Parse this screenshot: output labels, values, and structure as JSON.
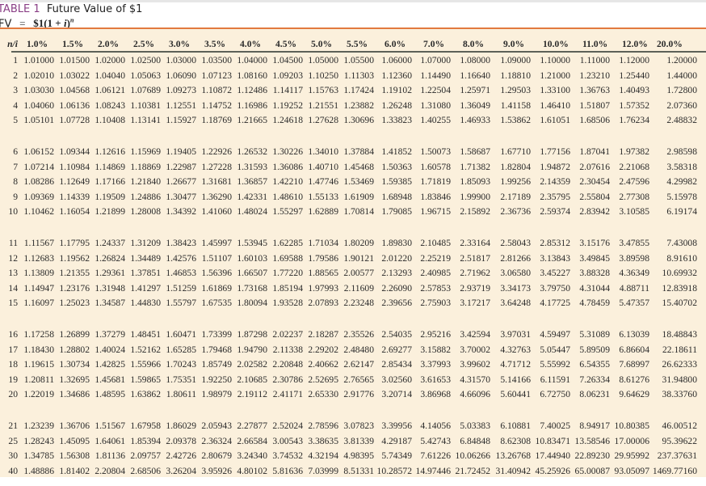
{
  "title": {
    "label": "TABLE 1",
    "text": "Future Value of $1"
  },
  "formula": {
    "lhs": "FV",
    "eq": "=",
    "rhs_prefix": "$1(1 + ",
    "rhs_var": "i",
    "rhs_close": ")",
    "exponent": "n"
  },
  "colors": {
    "accent_rule": "#e27a3f",
    "title_label": "#8a3f86",
    "panel_bg": "#fbf0dc"
  },
  "table": {
    "corner": "n/i",
    "columns": [
      "1.0%",
      "1.5%",
      "2.0%",
      "2.5%",
      "3.0%",
      "3.5%",
      "4.0%",
      "4.5%",
      "5.0%",
      "5.5%",
      "6.0%",
      "7.0%",
      "8.0%",
      "9.0%",
      "10.0%",
      "11.0%",
      "12.0%",
      "20.0%"
    ],
    "rows": [
      {
        "n": "1",
        "v": [
          "1.01000",
          "1.01500",
          "1.02000",
          "1.02500",
          "1.03000",
          "1.03500",
          "1.04000",
          "1.04500",
          "1.05000",
          "1.05500",
          "1.06000",
          "1.07000",
          "1.08000",
          "1.09000",
          "1.10000",
          "1.11000",
          "1.12000",
          "1.20000"
        ]
      },
      {
        "n": "2",
        "v": [
          "1.02010",
          "1.03022",
          "1.04040",
          "1.05063",
          "1.06090",
          "1.07123",
          "1.08160",
          "1.09203",
          "1.10250",
          "1.11303",
          "1.12360",
          "1.14490",
          "1.16640",
          "1.18810",
          "1.21000",
          "1.23210",
          "1.25440",
          "1.44000"
        ]
      },
      {
        "n": "3",
        "v": [
          "1.03030",
          "1.04568",
          "1.06121",
          "1.07689",
          "1.09273",
          "1.10872",
          "1.12486",
          "1.14117",
          "1.15763",
          "1.17424",
          "1.19102",
          "1.22504",
          "1.25971",
          "1.29503",
          "1.33100",
          "1.36763",
          "1.40493",
          "1.72800"
        ]
      },
      {
        "n": "4",
        "v": [
          "1.04060",
          "1.06136",
          "1.08243",
          "1.10381",
          "1.12551",
          "1.14752",
          "1.16986",
          "1.19252",
          "1.21551",
          "1.23882",
          "1.26248",
          "1.31080",
          "1.36049",
          "1.41158",
          "1.46410",
          "1.51807",
          "1.57352",
          "2.07360"
        ]
      },
      {
        "n": "5",
        "v": [
          "1.05101",
          "1.07728",
          "1.10408",
          "1.13141",
          "1.15927",
          "1.18769",
          "1.21665",
          "1.24618",
          "1.27628",
          "1.30696",
          "1.33823",
          "1.40255",
          "1.46933",
          "1.53862",
          "1.61051",
          "1.68506",
          "1.76234",
          "2.48832"
        ]
      },
      {
        "n": "6",
        "v": [
          "1.06152",
          "1.09344",
          "1.12616",
          "1.15969",
          "1.19405",
          "1.22926",
          "1.26532",
          "1.30226",
          "1.34010",
          "1.37884",
          "1.41852",
          "1.50073",
          "1.58687",
          "1.67710",
          "1.77156",
          "1.87041",
          "1.97382",
          "2.98598"
        ]
      },
      {
        "n": "7",
        "v": [
          "1.07214",
          "1.10984",
          "1.14869",
          "1.18869",
          "1.22987",
          "1.27228",
          "1.31593",
          "1.36086",
          "1.40710",
          "1.45468",
          "1.50363",
          "1.60578",
          "1.71382",
          "1.82804",
          "1.94872",
          "2.07616",
          "2.21068",
          "3.58318"
        ]
      },
      {
        "n": "8",
        "v": [
          "1.08286",
          "1.12649",
          "1.17166",
          "1.21840",
          "1.26677",
          "1.31681",
          "1.36857",
          "1.42210",
          "1.47746",
          "1.53469",
          "1.59385",
          "1.71819",
          "1.85093",
          "1.99256",
          "2.14359",
          "2.30454",
          "2.47596",
          "4.29982"
        ]
      },
      {
        "n": "9",
        "v": [
          "1.09369",
          "1.14339",
          "1.19509",
          "1.24886",
          "1.30477",
          "1.36290",
          "1.42331",
          "1.48610",
          "1.55133",
          "1.61909",
          "1.68948",
          "1.83846",
          "1.99900",
          "2.17189",
          "2.35795",
          "2.55804",
          "2.77308",
          "5.15978"
        ]
      },
      {
        "n": "10",
        "v": [
          "1.10462",
          "1.16054",
          "1.21899",
          "1.28008",
          "1.34392",
          "1.41060",
          "1.48024",
          "1.55297",
          "1.62889",
          "1.70814",
          "1.79085",
          "1.96715",
          "2.15892",
          "2.36736",
          "2.59374",
          "2.83942",
          "3.10585",
          "6.19174"
        ]
      },
      {
        "n": "11",
        "v": [
          "1.11567",
          "1.17795",
          "1.24337",
          "1.31209",
          "1.38423",
          "1.45997",
          "1.53945",
          "1.62285",
          "1.71034",
          "1.80209",
          "1.89830",
          "2.10485",
          "2.33164",
          "2.58043",
          "2.85312",
          "3.15176",
          "3.47855",
          "7.43008"
        ]
      },
      {
        "n": "12",
        "v": [
          "1.12683",
          "1.19562",
          "1.26824",
          "1.34489",
          "1.42576",
          "1.51107",
          "1.60103",
          "1.69588",
          "1.79586",
          "1.90121",
          "2.01220",
          "2.25219",
          "2.51817",
          "2.81266",
          "3.13843",
          "3.49845",
          "3.89598",
          "8.91610"
        ]
      },
      {
        "n": "13",
        "v": [
          "1.13809",
          "1.21355",
          "1.29361",
          "1.37851",
          "1.46853",
          "1.56396",
          "1.66507",
          "1.77220",
          "1.88565",
          "2.00577",
          "2.13293",
          "2.40985",
          "2.71962",
          "3.06580",
          "3.45227",
          "3.88328",
          "4.36349",
          "10.69932"
        ]
      },
      {
        "n": "14",
        "v": [
          "1.14947",
          "1.23176",
          "1.31948",
          "1.41297",
          "1.51259",
          "1.61869",
          "1.73168",
          "1.85194",
          "1.97993",
          "2.11609",
          "2.26090",
          "2.57853",
          "2.93719",
          "3.34173",
          "3.79750",
          "4.31044",
          "4.88711",
          "12.83918"
        ]
      },
      {
        "n": "15",
        "v": [
          "1.16097",
          "1.25023",
          "1.34587",
          "1.44830",
          "1.55797",
          "1.67535",
          "1.80094",
          "1.93528",
          "2.07893",
          "2.23248",
          "2.39656",
          "2.75903",
          "3.17217",
          "3.64248",
          "4.17725",
          "4.78459",
          "5.47357",
          "15.40702"
        ]
      },
      {
        "n": "16",
        "v": [
          "1.17258",
          "1.26899",
          "1.37279",
          "1.48451",
          "1.60471",
          "1.73399",
          "1.87298",
          "2.02237",
          "2.18287",
          "2.35526",
          "2.54035",
          "2.95216",
          "3.42594",
          "3.97031",
          "4.59497",
          "5.31089",
          "6.13039",
          "18.48843"
        ]
      },
      {
        "n": "17",
        "v": [
          "1.18430",
          "1.28802",
          "1.40024",
          "1.52162",
          "1.65285",
          "1.79468",
          "1.94790",
          "2.11338",
          "2.29202",
          "2.48480",
          "2.69277",
          "3.15882",
          "3.70002",
          "4.32763",
          "5.05447",
          "5.89509",
          "6.86604",
          "22.18611"
        ]
      },
      {
        "n": "18",
        "v": [
          "1.19615",
          "1.30734",
          "1.42825",
          "1.55966",
          "1.70243",
          "1.85749",
          "2.02582",
          "2.20848",
          "2.40662",
          "2.62147",
          "2.85434",
          "3.37993",
          "3.99602",
          "4.71712",
          "5.55992",
          "6.54355",
          "7.68997",
          "26.62333"
        ]
      },
      {
        "n": "19",
        "v": [
          "1.20811",
          "1.32695",
          "1.45681",
          "1.59865",
          "1.75351",
          "1.92250",
          "2.10685",
          "2.30786",
          "2.52695",
          "2.76565",
          "3.02560",
          "3.61653",
          "4.31570",
          "5.14166",
          "6.11591",
          "7.26334",
          "8.61276",
          "31.94800"
        ]
      },
      {
        "n": "20",
        "v": [
          "1.22019",
          "1.34686",
          "1.48595",
          "1.63862",
          "1.80611",
          "1.98979",
          "2.19112",
          "2.41171",
          "2.65330",
          "2.91776",
          "3.20714",
          "3.86968",
          "4.66096",
          "5.60441",
          "6.72750",
          "8.06231",
          "9.64629",
          "38.33760"
        ]
      },
      {
        "n": "21",
        "v": [
          "1.23239",
          "1.36706",
          "1.51567",
          "1.67958",
          "1.86029",
          "2.05943",
          "2.27877",
          "2.52024",
          "2.78596",
          "3.07823",
          "3.39956",
          "4.14056",
          "5.03383",
          "6.10881",
          "7.40025",
          "8.94917",
          "10.80385",
          "46.00512"
        ]
      },
      {
        "n": "25",
        "v": [
          "1.28243",
          "1.45095",
          "1.64061",
          "1.85394",
          "2.09378",
          "2.36324",
          "2.66584",
          "3.00543",
          "3.38635",
          "3.81339",
          "4.29187",
          "5.42743",
          "6.84848",
          "8.62308",
          "10.83471",
          "13.58546",
          "17.00006",
          "95.39622"
        ]
      },
      {
        "n": "30",
        "v": [
          "1.34785",
          "1.56308",
          "1.81136",
          "2.09757",
          "2.42726",
          "2.80679",
          "3.24340",
          "3.74532",
          "4.32194",
          "4.98395",
          "5.74349",
          "7.61226",
          "10.06266",
          "13.26768",
          "17.44940",
          "22.89230",
          "29.95992",
          "237.37631"
        ]
      },
      {
        "n": "40",
        "v": [
          "1.48886",
          "1.81402",
          "2.20804",
          "2.68506",
          "3.26204",
          "3.95926",
          "4.80102",
          "5.81636",
          "7.03999",
          "8.51331",
          "10.28572",
          "14.97446",
          "21.72452",
          "31.40942",
          "45.25926",
          "65.00087",
          "93.05097",
          "1469.77160"
        ]
      }
    ]
  }
}
